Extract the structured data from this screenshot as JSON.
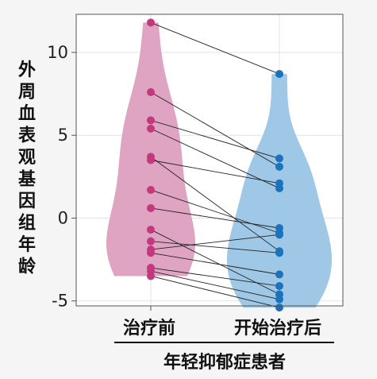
{
  "chart_data": {
    "type": "scatter",
    "title": "",
    "xlabel": "年轻抑郁症患者",
    "ylabel": "外周血表观基因组年龄",
    "categories": [
      "治疗前",
      "开始治疗后"
    ],
    "ylim": [
      -5.3,
      12.3
    ],
    "yticks": [
      10,
      5,
      0,
      -5
    ],
    "ytick_labels": [
      "10",
      "5",
      "0",
      "-5"
    ],
    "grid": true,
    "colors": {
      "before_violin": "#e0a4c3",
      "before_points": "#c4387e",
      "after_violin": "#9ec8e6",
      "after_points": "#1b72bd",
      "lines": "#222222"
    },
    "series": [
      {
        "values": [
          11.8,
          7.6,
          5.9,
          5.4,
          3.7,
          3.5,
          1.7,
          0.6,
          -0.7,
          -1.4,
          -1.9,
          -2.1,
          -3.0,
          -3.2,
          -3.5
        ]
      },
      {
        "values": [
          8.7,
          3.1,
          3.6,
          1.8,
          -2.0,
          2.1,
          -0.9,
          -0.6,
          -4.6,
          -2.1,
          -1.0,
          -3.4,
          -4.1,
          -4.9,
          -5.4
        ]
      }
    ]
  }
}
